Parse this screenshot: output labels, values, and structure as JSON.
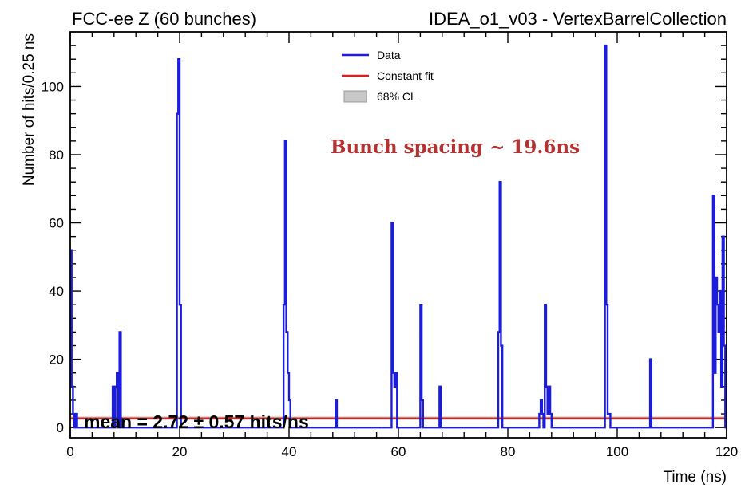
{
  "chart_data": {
    "type": "line",
    "title_left": "FCC-ee Z (60 bunches)",
    "title_right": "IDEA_o1_v03 - VertexBarrelCollection",
    "xlabel": "Time (ns)",
    "ylabel": "Number of hits/0.25 ns",
    "xlim": [
      0,
      120
    ],
    "ylim": [
      -3,
      116
    ],
    "xticks": [
      0,
      20,
      40,
      60,
      80,
      100,
      120
    ],
    "yticks": [
      0,
      20,
      40,
      60,
      80,
      100
    ],
    "grid": false,
    "legend_position": "top-center",
    "legend": [
      {
        "label": "Data",
        "kind": "line",
        "color": "#1c1cdc"
      },
      {
        "label": "Constant fit",
        "kind": "line",
        "color": "#d42020"
      },
      {
        "label": "68% CL",
        "kind": "box",
        "color": "#c8c8c8"
      }
    ],
    "annotations": {
      "spacing": {
        "text": "Bunch spacing ~ 19.6ns",
        "color": "#b33232"
      },
      "mean": {
        "text": "mean = 2.72 ± 0.57 hits/ns"
      }
    },
    "fit": {
      "value": 2.72,
      "error": 0.57,
      "color": "#d42020",
      "band_color": "#c8c8c8"
    },
    "series": [
      {
        "name": "Data",
        "color": "#1c1cdc",
        "bin_width": 0.25,
        "x": [
          0,
          0.25,
          0.5,
          0.75,
          1.0,
          1.25,
          1.5,
          7.75,
          8.0,
          8.25,
          8.5,
          9.0,
          9.25,
          9.5,
          19.5,
          19.75,
          20.0,
          20.25,
          20.5,
          39.0,
          39.25,
          39.5,
          39.75,
          40.0,
          40.25,
          48.5,
          48.75,
          58.75,
          59.0,
          59.25,
          59.5,
          60.0,
          60.25,
          64.0,
          64.25,
          64.5,
          67.5,
          67.75,
          78.25,
          78.5,
          78.75,
          79.0,
          85.75,
          86.0,
          86.25,
          86.75,
          87.0,
          87.25,
          87.5,
          87.75,
          88.0,
          97.75,
          98.0,
          98.25,
          98.5,
          98.75,
          106.0,
          106.25,
          117.5,
          117.75,
          118.0,
          118.25,
          118.5,
          118.75,
          119.0,
          119.25,
          119.5,
          119.75
        ],
        "y": [
          52,
          12,
          4,
          0,
          4,
          0,
          0,
          12,
          0,
          12,
          16,
          28,
          0,
          0,
          92,
          108,
          36,
          0,
          0,
          36,
          84,
          28,
          16,
          8,
          0,
          8,
          0,
          60,
          16,
          12,
          16,
          0,
          0,
          36,
          8,
          0,
          12,
          0,
          28,
          72,
          24,
          0,
          4,
          8,
          4,
          36,
          12,
          4,
          12,
          4,
          0,
          112,
          36,
          4,
          4,
          0,
          20,
          0,
          68,
          16,
          44,
          36,
          28,
          40,
          12,
          56,
          24,
          0
        ]
      }
    ]
  }
}
